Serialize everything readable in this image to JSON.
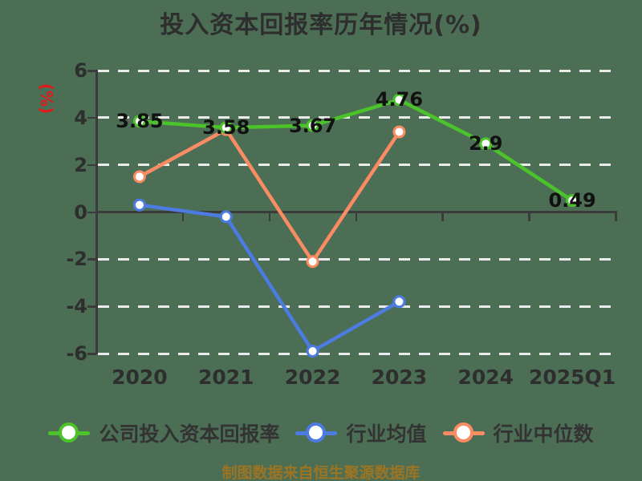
{
  "footer": {
    "text": "制图数据来自恒生聚源数据库"
  },
  "colors": {
    "background": "#4C6E55",
    "grid": "#EBEBEB",
    "axis": "#3B3B3B",
    "tick_text": "#2E2E2E",
    "title_text": "#2E2E2E",
    "legend_text": "#333333",
    "data_label_text": "#111111",
    "axis_name_red": "#E11B1B",
    "footer_text": "#9D7522",
    "marker_fill": "#FFFFFF"
  },
  "chart_data": {
    "type": "line",
    "title": "投入资本回报率历年情况(%)",
    "ylabel": "(%)",
    "xlabel": "",
    "categories": [
      "2020",
      "2021",
      "2022",
      "2023",
      "2024",
      "2025Q1"
    ],
    "series": [
      {
        "name": "公司投入资本回报率",
        "color": "#4CC22B",
        "values": [
          3.85,
          3.58,
          3.67,
          4.76,
          2.9,
          0.49
        ],
        "labels": [
          "3.85",
          "3.58",
          "3.67",
          "4.76",
          "2.9",
          "0.49"
        ],
        "show_labels": true
      },
      {
        "name": "行业均值",
        "color": "#4C7BE1",
        "values": [
          0.3,
          -0.2,
          -5.9,
          -3.8,
          null,
          null
        ],
        "labels": [],
        "show_labels": false
      },
      {
        "name": "行业中位数",
        "color": "#FA8C64",
        "values": [
          1.5,
          3.5,
          -2.1,
          3.4,
          null,
          null
        ],
        "labels": [],
        "show_labels": false
      }
    ],
    "ylim": [
      -6,
      6
    ],
    "yticks": [
      6,
      4,
      2,
      0,
      -2,
      -4,
      -6
    ],
    "grid": "horizontal-dashed-white",
    "legend_position": "bottom",
    "x_axis_on_zero": true
  }
}
